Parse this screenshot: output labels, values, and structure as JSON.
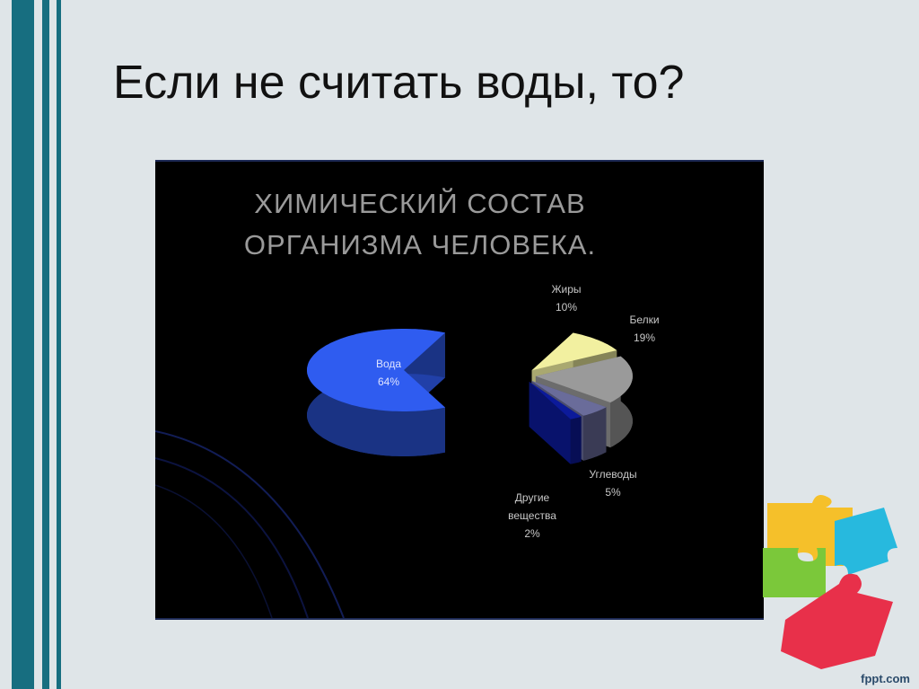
{
  "slide": {
    "title": "Если не считать воды, то?",
    "footer_brand": "fppt.com",
    "stripe_color": "#176e80",
    "background": "#dfe5e8"
  },
  "chart_data": {
    "type": "pie",
    "style": "3d-exploded",
    "title_line1": "ХИМИЧЕСКИЙ СОСТАВ",
    "title_line2": "ОРГАНИЗМА ЧЕЛОВЕКА.",
    "slices": [
      {
        "name": "Вода",
        "value": 64,
        "label": "64%",
        "color": "#2f5cf0"
      },
      {
        "name": "Жиры",
        "value": 10,
        "label": "10%",
        "color": "#f2f0a0"
      },
      {
        "name": "Белки",
        "value": 19,
        "label": "19%",
        "color": "#9a9a9a"
      },
      {
        "name": "Углеводы",
        "value": 5,
        "label": "5%",
        "color": "#6a6c9a"
      },
      {
        "name": "Другие вещества",
        "value": 2,
        "label": "2%",
        "color": "#0c1a9a"
      }
    ],
    "name_lines": {
      "other_1": "Другие",
      "other_2": "вещества"
    }
  }
}
